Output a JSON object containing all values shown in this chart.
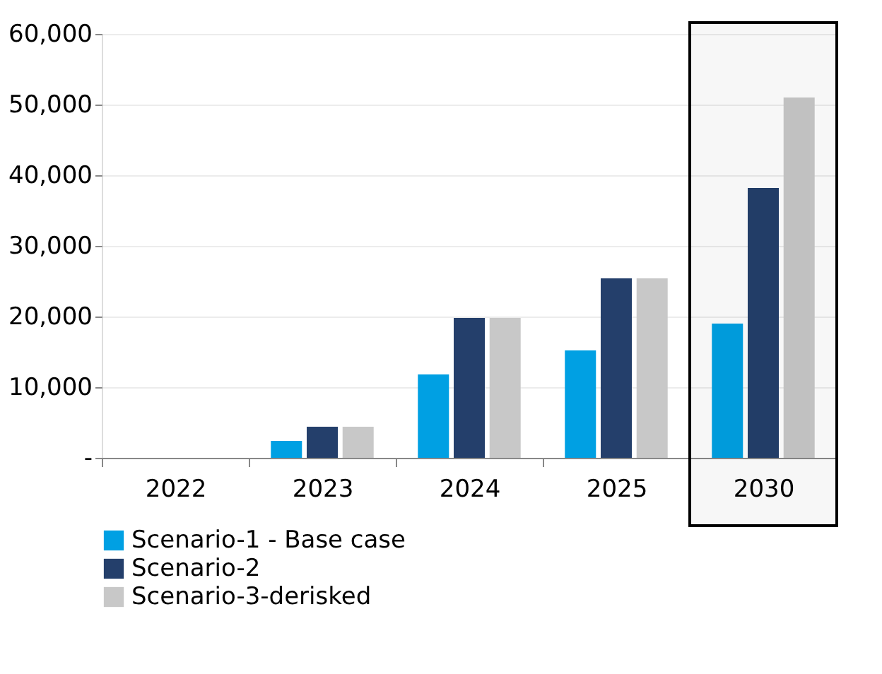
{
  "chart_data": {
    "type": "bar",
    "categories": [
      "2022",
      "2023",
      "2024",
      "2025",
      "2030"
    ],
    "series": [
      {
        "name": "Scenario-1 - Base case",
        "color": "#00a0e3",
        "values": [
          0,
          2400,
          11800,
          15200,
          19000
        ]
      },
      {
        "name": "Scenario-2",
        "color": "#243f6b",
        "values": [
          0,
          4400,
          19800,
          25400,
          38200
        ]
      },
      {
        "name": "Scenario-3-derisked",
        "color": "#c8c8c8",
        "values": [
          0,
          4400,
          19800,
          25400,
          51000
        ]
      }
    ],
    "ylim": [
      0,
      60000
    ],
    "yticks": [
      {
        "value": 0,
        "label": "-"
      },
      {
        "value": 10000,
        "label": "10,000"
      },
      {
        "value": 20000,
        "label": "20,000"
      },
      {
        "value": 30000,
        "label": "30,000"
      },
      {
        "value": 40000,
        "label": "40,000"
      },
      {
        "value": 50000,
        "label": "50,000"
      },
      {
        "value": 60000,
        "label": "60,000"
      }
    ],
    "bands": [
      {
        "axis": "x",
        "from": "2030",
        "to": "2030",
        "color": "#000000"
      }
    ],
    "grid": "y",
    "legend": "bottom"
  }
}
